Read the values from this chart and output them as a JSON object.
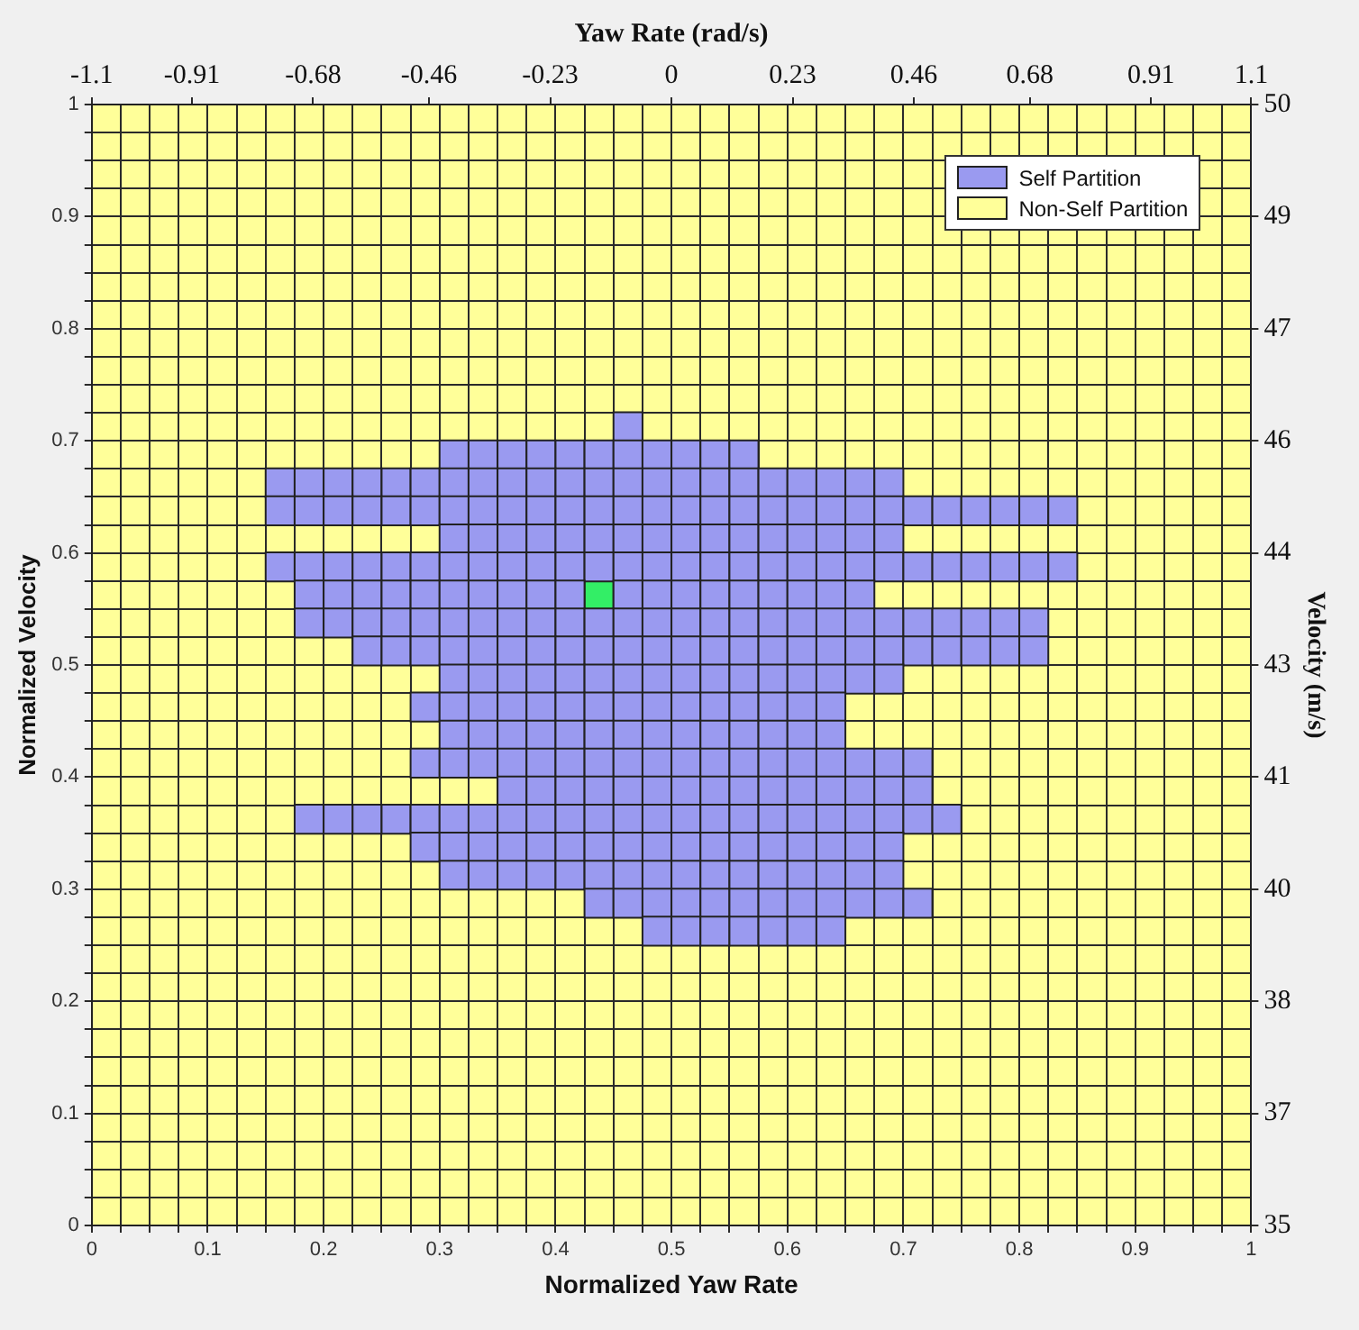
{
  "chart_data": {
    "type": "scatter",
    "xlabel": "Normalized Yaw Rate",
    "ylabel": "Normalized Velocity",
    "x2label": "Yaw Rate (rad/s)",
    "y2label": "Velocity (m/s)",
    "xlim": [
      0,
      1
    ],
    "xticks": [
      0,
      {
        "value": 0.025,
        "label": null
      },
      {
        "value": 0.05,
        "label": null
      },
      {
        "value": 0.075,
        "label": null
      },
      0.1,
      {
        "value": 0.125,
        "label": null
      },
      {
        "value": 0.15,
        "label": null
      },
      {
        "value": 0.175,
        "label": null
      },
      0.2,
      {
        "value": 0.225,
        "label": null
      },
      {
        "value": 0.25,
        "label": null
      },
      {
        "value": 0.275,
        "label": null
      },
      0.3,
      {
        "value": 0.325,
        "label": null
      },
      {
        "value": 0.35,
        "label": null
      },
      {
        "value": 0.375,
        "label": null
      },
      0.4,
      {
        "value": 0.425,
        "label": null
      },
      {
        "value": 0.45,
        "label": null
      },
      {
        "value": 0.475,
        "label": null
      },
      0.5,
      {
        "value": 0.525,
        "label": null
      },
      {
        "value": 0.55,
        "label": null
      },
      {
        "value": 0.575,
        "label": null
      },
      0.6,
      {
        "value": 0.625,
        "label": null
      },
      {
        "value": 0.65,
        "label": null
      },
      {
        "value": 0.675,
        "label": null
      },
      0.7,
      {
        "value": 0.725,
        "label": null
      },
      {
        "value": 0.75,
        "label": null
      },
      {
        "value": 0.775,
        "label": null
      },
      0.8,
      {
        "value": 0.825,
        "label": null
      },
      {
        "value": 0.85,
        "label": null
      },
      {
        "value": 0.875,
        "label": null
      },
      0.9,
      {
        "value": 0.925,
        "label": null
      },
      {
        "value": 0.95,
        "label": null
      },
      {
        "value": 0.975,
        "label": null
      },
      1
    ],
    "ylim": [
      0,
      1
    ],
    "yticks": [
      0,
      {
        "value": 0.025,
        "label": null
      },
      {
        "value": 0.05,
        "label": null
      },
      {
        "value": 0.075,
        "label": null
      },
      0.1,
      {
        "value": 0.125,
        "label": null
      },
      {
        "value": 0.15,
        "label": null
      },
      {
        "value": 0.175,
        "label": null
      },
      0.2,
      {
        "value": 0.225,
        "label": null
      },
      {
        "value": 0.25,
        "label": null
      },
      {
        "value": 0.275,
        "label": null
      },
      0.3,
      {
        "value": 0.325,
        "label": null
      },
      {
        "value": 0.35,
        "label": null
      },
      {
        "value": 0.375,
        "label": null
      },
      0.4,
      {
        "value": 0.425,
        "label": null
      },
      {
        "value": 0.45,
        "label": null
      },
      {
        "value": 0.475,
        "label": null
      },
      0.5,
      {
        "value": 0.525,
        "label": null
      },
      {
        "value": 0.55,
        "label": null
      },
      {
        "value": 0.575,
        "label": null
      },
      0.6,
      {
        "value": 0.625,
        "label": null
      },
      {
        "value": 0.65,
        "label": null
      },
      {
        "value": 0.675,
        "label": null
      },
      0.7,
      {
        "value": 0.725,
        "label": null
      },
      {
        "value": 0.75,
        "label": null
      },
      {
        "value": 0.775,
        "label": null
      },
      0.8,
      {
        "value": 0.825,
        "label": null
      },
      {
        "value": 0.85,
        "label": null
      },
      {
        "value": 0.875,
        "label": null
      },
      0.9,
      {
        "value": 0.925,
        "label": null
      },
      {
        "value": 0.95,
        "label": null
      },
      {
        "value": 0.975,
        "label": null
      },
      1
    ],
    "x2lim": [
      -1.1,
      1.1
    ],
    "x2ticks": [
      -1.1,
      -0.91,
      -0.68,
      -0.46,
      -0.23,
      0,
      0.23,
      0.46,
      0.68,
      0.91,
      1.1
    ],
    "y2lim": [
      35,
      50
    ],
    "y2ticks": [
      35,
      {
        "value": 36.5,
        "label": "37"
      },
      38,
      {
        "value": 39.5,
        "label": "40"
      },
      41,
      {
        "value": 42.5,
        "label": "43"
      },
      44,
      {
        "value": 45.5,
        "label": "46"
      },
      47,
      {
        "value": 48.5,
        "label": "49"
      },
      50
    ],
    "grid": true,
    "legend": "top right",
    "marker": "square",
    "bands": [
      {
        "axis": "y2",
        "from": 35,
        "to": 50,
        "label": "Non-Self Partition",
        "color": "#ffff99"
      }
    ],
    "series": [
      {
        "name": "Self Partition",
        "color": "#9a9af0",
        "x": [
          0.4625,
          0.3125,
          0.3375,
          0.3625,
          0.3875,
          0.4125,
          0.4375,
          0.4625,
          0.4875,
          0.5125,
          0.5375,
          0.5625,
          0.1625,
          0.1875,
          0.2125,
          0.2375,
          0.2625,
          0.2875,
          0.3125,
          0.3375,
          0.3625,
          0.3875,
          0.4125,
          0.4375,
          0.4625,
          0.4875,
          0.5125,
          0.5375,
          0.5625,
          0.5875,
          0.6125,
          0.6375,
          0.6625,
          0.6875,
          0.1625,
          0.1875,
          0.2125,
          0.2375,
          0.2625,
          0.2875,
          0.3125,
          0.3375,
          0.3625,
          0.3875,
          0.4125,
          0.4375,
          0.4625,
          0.4875,
          0.5125,
          0.5375,
          0.5625,
          0.5875,
          0.6125,
          0.6375,
          0.6625,
          0.6875,
          0.7125,
          0.7375,
          0.7625,
          0.7875,
          0.8125,
          0.8375,
          0.3125,
          0.3375,
          0.3625,
          0.3875,
          0.4125,
          0.4375,
          0.4625,
          0.4875,
          0.5125,
          0.5375,
          0.5625,
          0.5875,
          0.6125,
          0.6375,
          0.6625,
          0.6875,
          0.1625,
          0.1875,
          0.2125,
          0.2375,
          0.2625,
          0.2875,
          0.3125,
          0.3375,
          0.3625,
          0.3875,
          0.4125,
          0.4375,
          0.4625,
          0.4875,
          0.5125,
          0.5375,
          0.5625,
          0.5875,
          0.6125,
          0.6375,
          0.6625,
          0.6875,
          0.7125,
          0.7375,
          0.7625,
          0.7875,
          0.8125,
          0.8375,
          0.1875,
          0.2125,
          0.2375,
          0.2625,
          0.2875,
          0.3125,
          0.3375,
          0.3625,
          0.3875,
          0.4125,
          0.4625,
          0.4875,
          0.5125,
          0.5375,
          0.5625,
          0.5875,
          0.6125,
          0.6375,
          0.6625,
          0.1875,
          0.2125,
          0.2375,
          0.2625,
          0.2875,
          0.3125,
          0.3375,
          0.3625,
          0.3875,
          0.4125,
          0.4375,
          0.4625,
          0.4875,
          0.5125,
          0.5375,
          0.5625,
          0.5875,
          0.6125,
          0.6375,
          0.6625,
          0.6875,
          0.7125,
          0.7375,
          0.7625,
          0.7875,
          0.8125,
          0.2375,
          0.2625,
          0.2875,
          0.3125,
          0.3375,
          0.3625,
          0.3875,
          0.4125,
          0.4375,
          0.4625,
          0.4875,
          0.5125,
          0.5375,
          0.5625,
          0.5875,
          0.6125,
          0.6375,
          0.6625,
          0.6875,
          0.7125,
          0.7375,
          0.7625,
          0.7875,
          0.8125,
          0.3125,
          0.3375,
          0.3625,
          0.3875,
          0.4125,
          0.4375,
          0.4625,
          0.4875,
          0.5125,
          0.5375,
          0.5625,
          0.5875,
          0.6125,
          0.6375,
          0.6625,
          0.6875,
          0.2875,
          0.3125,
          0.3375,
          0.3625,
          0.3875,
          0.4125,
          0.4375,
          0.4625,
          0.4875,
          0.5125,
          0.5375,
          0.5625,
          0.5875,
          0.6125,
          0.6375,
          0.3125,
          0.3375,
          0.3625,
          0.3875,
          0.4125,
          0.4375,
          0.4625,
          0.4875,
          0.5125,
          0.5375,
          0.5625,
          0.5875,
          0.6125,
          0.6375,
          0.2875,
          0.3125,
          0.3375,
          0.3625,
          0.3875,
          0.4125,
          0.4375,
          0.4625,
          0.4875,
          0.5125,
          0.5375,
          0.5625,
          0.5875,
          0.6125,
          0.6375,
          0.6625,
          0.6875,
          0.7125,
          0.3625,
          0.3875,
          0.4125,
          0.4375,
          0.4625,
          0.4875,
          0.5125,
          0.5375,
          0.5625,
          0.5875,
          0.6125,
          0.6375,
          0.6625,
          0.6875,
          0.7125,
          0.1875,
          0.2125,
          0.2375,
          0.2625,
          0.2875,
          0.3125,
          0.3375,
          0.3625,
          0.3875,
          0.4125,
          0.4375,
          0.4625,
          0.4875,
          0.5125,
          0.5375,
          0.5625,
          0.5875,
          0.6125,
          0.6375,
          0.6625,
          0.6875,
          0.7125,
          0.7375,
          0.2875,
          0.3125,
          0.3375,
          0.3625,
          0.3875,
          0.4125,
          0.4375,
          0.4625,
          0.4875,
          0.5125,
          0.5375,
          0.5625,
          0.5875,
          0.6125,
          0.6375,
          0.6625,
          0.6875,
          0.3125,
          0.3375,
          0.3625,
          0.3875,
          0.4125,
          0.4375,
          0.4625,
          0.4875,
          0.5125,
          0.5375,
          0.5625,
          0.5875,
          0.6125,
          0.6375,
          0.6625,
          0.6875,
          0.4375,
          0.4625,
          0.4875,
          0.5125,
          0.5375,
          0.5625,
          0.5875,
          0.6125,
          0.6375,
          0.6625,
          0.6875,
          0.7125,
          0.4875,
          0.5125,
          0.5375,
          0.5625,
          0.5875,
          0.6125,
          0.6375
        ],
        "values": [
          0.7125,
          0.6875,
          0.6875,
          0.6875,
          0.6875,
          0.6875,
          0.6875,
          0.6875,
          0.6875,
          0.6875,
          0.6875,
          0.6875,
          0.6625,
          0.6625,
          0.6625,
          0.6625,
          0.6625,
          0.6625,
          0.6625,
          0.6625,
          0.6625,
          0.6625,
          0.6625,
          0.6625,
          0.6625,
          0.6625,
          0.6625,
          0.6625,
          0.6625,
          0.6625,
          0.6625,
          0.6625,
          0.6625,
          0.6625,
          0.6375,
          0.6375,
          0.6375,
          0.6375,
          0.6375,
          0.6375,
          0.6375,
          0.6375,
          0.6375,
          0.6375,
          0.6375,
          0.6375,
          0.6375,
          0.6375,
          0.6375,
          0.6375,
          0.6375,
          0.6375,
          0.6375,
          0.6375,
          0.6375,
          0.6375,
          0.6375,
          0.6375,
          0.6375,
          0.6375,
          0.6375,
          0.6375,
          0.6125,
          0.6125,
          0.6125,
          0.6125,
          0.6125,
          0.6125,
          0.6125,
          0.6125,
          0.6125,
          0.6125,
          0.6125,
          0.6125,
          0.6125,
          0.6125,
          0.6125,
          0.6125,
          0.5875,
          0.5875,
          0.5875,
          0.5875,
          0.5875,
          0.5875,
          0.5875,
          0.5875,
          0.5875,
          0.5875,
          0.5875,
          0.5875,
          0.5875,
          0.5875,
          0.5875,
          0.5875,
          0.5875,
          0.5875,
          0.5875,
          0.5875,
          0.5875,
          0.5875,
          0.5875,
          0.5875,
          0.5875,
          0.5875,
          0.5875,
          0.5875,
          0.5625,
          0.5625,
          0.5625,
          0.5625,
          0.5625,
          0.5625,
          0.5625,
          0.5625,
          0.5625,
          0.5625,
          0.5625,
          0.5625,
          0.5625,
          0.5625,
          0.5625,
          0.5625,
          0.5625,
          0.5625,
          0.5625,
          0.5375,
          0.5375,
          0.5375,
          0.5375,
          0.5375,
          0.5375,
          0.5375,
          0.5375,
          0.5375,
          0.5375,
          0.5375,
          0.5375,
          0.5375,
          0.5375,
          0.5375,
          0.5375,
          0.5375,
          0.5375,
          0.5375,
          0.5375,
          0.5375,
          0.5375,
          0.5375,
          0.5375,
          0.5375,
          0.5375,
          0.5125,
          0.5125,
          0.5125,
          0.5125,
          0.5125,
          0.5125,
          0.5125,
          0.5125,
          0.5125,
          0.5125,
          0.5125,
          0.5125,
          0.5125,
          0.5125,
          0.5125,
          0.5125,
          0.5125,
          0.5125,
          0.5125,
          0.5125,
          0.5125,
          0.5125,
          0.5125,
          0.5125,
          0.4875,
          0.4875,
          0.4875,
          0.4875,
          0.4875,
          0.4875,
          0.4875,
          0.4875,
          0.4875,
          0.4875,
          0.4875,
          0.4875,
          0.4875,
          0.4875,
          0.4875,
          0.4875,
          0.4625,
          0.4625,
          0.4625,
          0.4625,
          0.4625,
          0.4625,
          0.4625,
          0.4625,
          0.4625,
          0.4625,
          0.4625,
          0.4625,
          0.4625,
          0.4625,
          0.4625,
          0.4375,
          0.4375,
          0.4375,
          0.4375,
          0.4375,
          0.4375,
          0.4375,
          0.4375,
          0.4375,
          0.4375,
          0.4375,
          0.4375,
          0.4375,
          0.4375,
          0.4125,
          0.4125,
          0.4125,
          0.4125,
          0.4125,
          0.4125,
          0.4125,
          0.4125,
          0.4125,
          0.4125,
          0.4125,
          0.4125,
          0.4125,
          0.4125,
          0.4125,
          0.4125,
          0.4125,
          0.4125,
          0.3875,
          0.3875,
          0.3875,
          0.3875,
          0.3875,
          0.3875,
          0.3875,
          0.3875,
          0.3875,
          0.3875,
          0.3875,
          0.3875,
          0.3875,
          0.3875,
          0.3875,
          0.3625,
          0.3625,
          0.3625,
          0.3625,
          0.3625,
          0.3625,
          0.3625,
          0.3625,
          0.3625,
          0.3625,
          0.3625,
          0.3625,
          0.3625,
          0.3625,
          0.3625,
          0.3625,
          0.3625,
          0.3625,
          0.3625,
          0.3625,
          0.3625,
          0.3625,
          0.3625,
          0.3375,
          0.3375,
          0.3375,
          0.3375,
          0.3375,
          0.3375,
          0.3375,
          0.3375,
          0.3375,
          0.3375,
          0.3375,
          0.3375,
          0.3375,
          0.3375,
          0.3375,
          0.3375,
          0.3375,
          0.3125,
          0.3125,
          0.3125,
          0.3125,
          0.3125,
          0.3125,
          0.3125,
          0.3125,
          0.3125,
          0.3125,
          0.3125,
          0.3125,
          0.3125,
          0.3125,
          0.3125,
          0.3125,
          0.2875,
          0.2875,
          0.2875,
          0.2875,
          0.2875,
          0.2875,
          0.2875,
          0.2875,
          0.2875,
          0.2875,
          0.2875,
          0.2875,
          0.2625,
          0.2625,
          0.2625,
          0.2625,
          0.2625,
          0.2625,
          0.2625
        ]
      },
      {
        "color": "#33ee66",
        "x": [
          0.4375
        ],
        "values": [
          0.5625
        ]
      }
    ]
  }
}
